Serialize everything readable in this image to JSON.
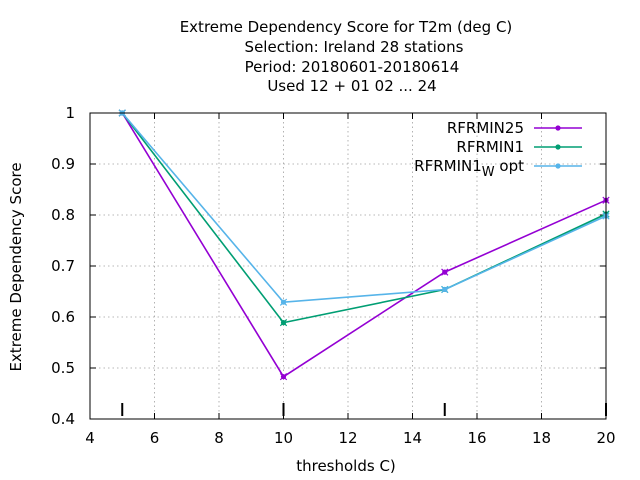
{
  "chart_data": {
    "type": "line",
    "title_lines": [
      "Extreme Dependency Score  for T2m (deg C)",
      "Selection: Ireland      28 stations",
      "Period: 20180601-20180614",
      "Used  12 + 01 02 ... 24"
    ],
    "xlabel": "thresholds C)",
    "ylabel": "Extreme Dependency Score",
    "xlim": [
      4,
      20
    ],
    "ylim": [
      0.4,
      1.0
    ],
    "x_ticks": [
      "4",
      "6",
      "8",
      "10",
      "12",
      "14",
      "16",
      "18",
      "20"
    ],
    "y_ticks": [
      "0.4",
      "0.5",
      "0.6",
      "0.7",
      "0.8",
      "0.9",
      "1"
    ],
    "grid": true,
    "legend_position": "top-right",
    "threshold_markers": [
      5,
      10,
      15,
      20
    ],
    "series": [
      {
        "name": "RFRMIN25",
        "name_main": "RFRMIN25",
        "name_sub": "",
        "name_tail": "",
        "color": "#9400d3",
        "x": [
          5,
          10,
          15,
          20
        ],
        "y": [
          1.0,
          0.483,
          0.688,
          0.829
        ]
      },
      {
        "name": "RFRMIN1",
        "name_main": "RFRMIN1",
        "name_sub": "",
        "name_tail": "",
        "color": "#009e73",
        "x": [
          5,
          10,
          15,
          20
        ],
        "y": [
          1.0,
          0.589,
          0.654,
          0.802
        ]
      },
      {
        "name": "RFRMIN1 W opt",
        "name_main": "RFRMIN1",
        "name_sub": "W",
        "name_tail": " opt",
        "color": "#56b4e9",
        "x": [
          5,
          10,
          15,
          20
        ],
        "y": [
          1.0,
          0.629,
          0.654,
          0.798
        ]
      }
    ]
  }
}
